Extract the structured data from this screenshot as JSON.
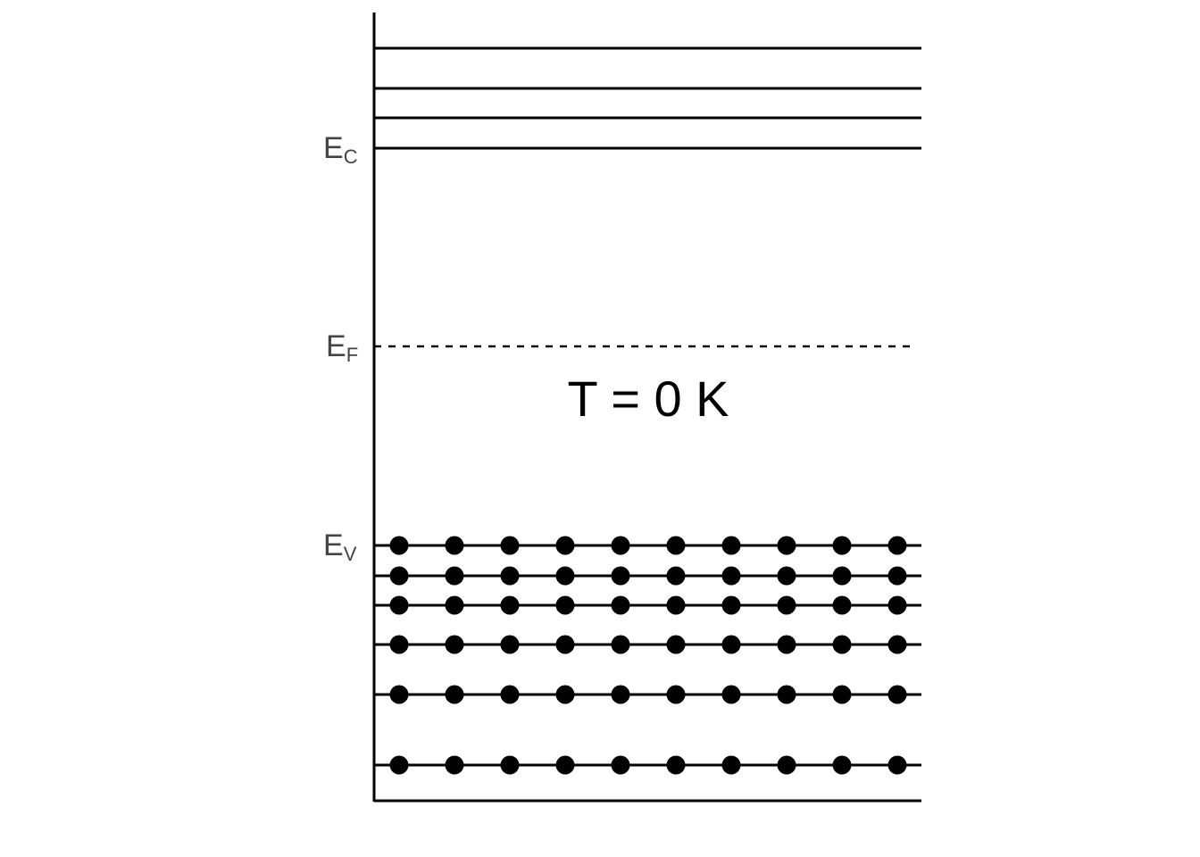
{
  "diagram": {
    "conduction_label": {
      "main": "E",
      "sub": "C"
    },
    "fermi_label": {
      "main": "E",
      "sub": "F"
    },
    "valence_label": {
      "main": "E",
      "sub": "V"
    },
    "temperature_text": "T = 0 K",
    "conduction_levels_empty": 4,
    "valence_levels_filled": 6,
    "electrons_per_level": 10,
    "line_color": "#000000",
    "label_color": "#444444"
  }
}
